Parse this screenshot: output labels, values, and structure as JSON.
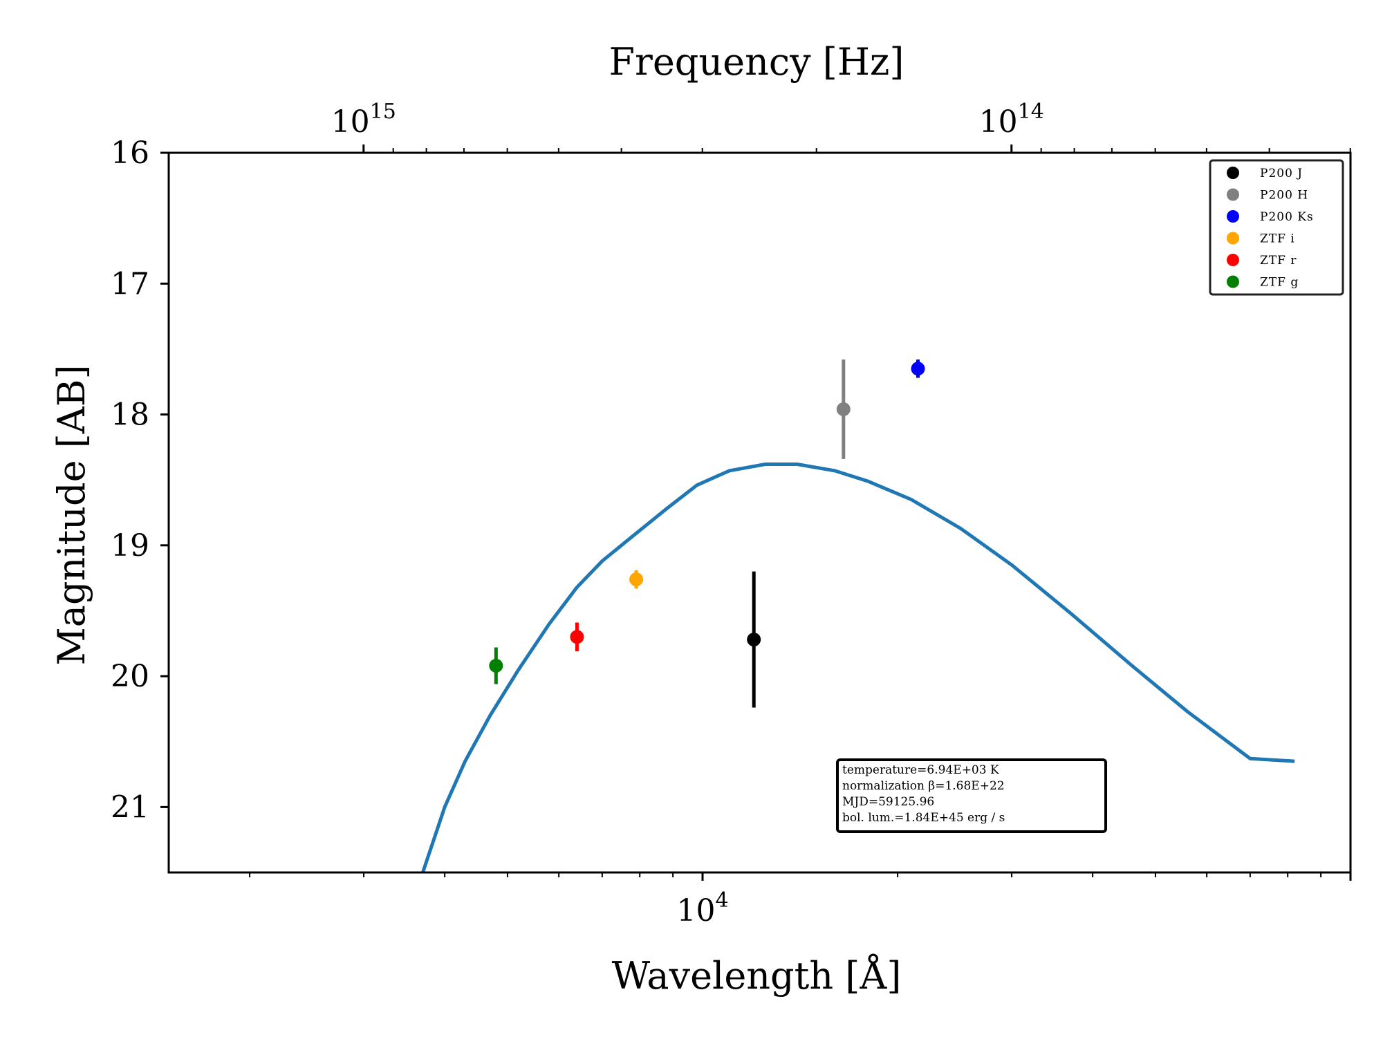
{
  "chart_data": {
    "type": "scatter",
    "xlabel": "Wavelength [Å]",
    "ylabel": "Magnitude [AB]",
    "top_xlabel": "Frequency [Hz]",
    "x_scale": "log",
    "y_inverted": true,
    "xlim": [
      1500,
      100000
    ],
    "ylim": [
      21.5,
      16
    ],
    "y_ticks": [
      16,
      17,
      18,
      19,
      20,
      21
    ],
    "y_tick_labels": [
      "16",
      "17",
      "18",
      "19",
      "20",
      "21"
    ],
    "x_major_ticks": [
      {
        "value": 10000,
        "base": "10",
        "exp": "4"
      }
    ],
    "top_major_ticks": [
      {
        "freq_hz": 1000000000000000.0,
        "base": "10",
        "exp": "15"
      },
      {
        "freq_hz": 100000000000000.0,
        "base": "10",
        "exp": "14"
      }
    ],
    "series": [
      {
        "name": "P200 J",
        "color": "#000000",
        "x": 12000,
        "y": 19.72,
        "yerr": 0.52
      },
      {
        "name": "P200 H",
        "color": "#808080",
        "x": 16500,
        "y": 17.96,
        "yerr": 0.38
      },
      {
        "name": "P200 Ks",
        "color": "#0000ff",
        "x": 21500,
        "y": 17.65,
        "yerr": 0.07
      },
      {
        "name": "ZTF i",
        "color": "#ffa500",
        "x": 7900,
        "y": 19.26,
        "yerr": 0.07
      },
      {
        "name": "ZTF r",
        "color": "#ff0000",
        "x": 6400,
        "y": 19.7,
        "yerr": 0.11
      },
      {
        "name": "ZTF g",
        "color": "#008000",
        "x": 4800,
        "y": 19.92,
        "yerr": 0.14
      }
    ],
    "model": {
      "color": "#1f77b4",
      "x": [
        3700,
        4000,
        4300,
        4700,
        5200,
        5800,
        6400,
        7000,
        7800,
        8800,
        9800,
        11000,
        12500,
        14000,
        16000,
        18000,
        21000,
        25000,
        30000,
        37000,
        46000,
        56000,
        70000,
        82000
      ],
      "y": [
        21.5,
        21.0,
        20.65,
        20.3,
        19.95,
        19.6,
        19.32,
        19.12,
        18.93,
        18.72,
        18.54,
        18.43,
        18.38,
        18.38,
        18.43,
        18.51,
        18.65,
        18.87,
        19.15,
        19.52,
        19.92,
        20.27,
        20.63,
        20.65
      ]
    },
    "legend_placement": "top-right",
    "annotation": [
      "temperature=6.94E+03 K",
      "normalization β=1.68E+22",
      "MJD=59125.96",
      "bol. lum.=1.84E+45 erg / s"
    ]
  }
}
